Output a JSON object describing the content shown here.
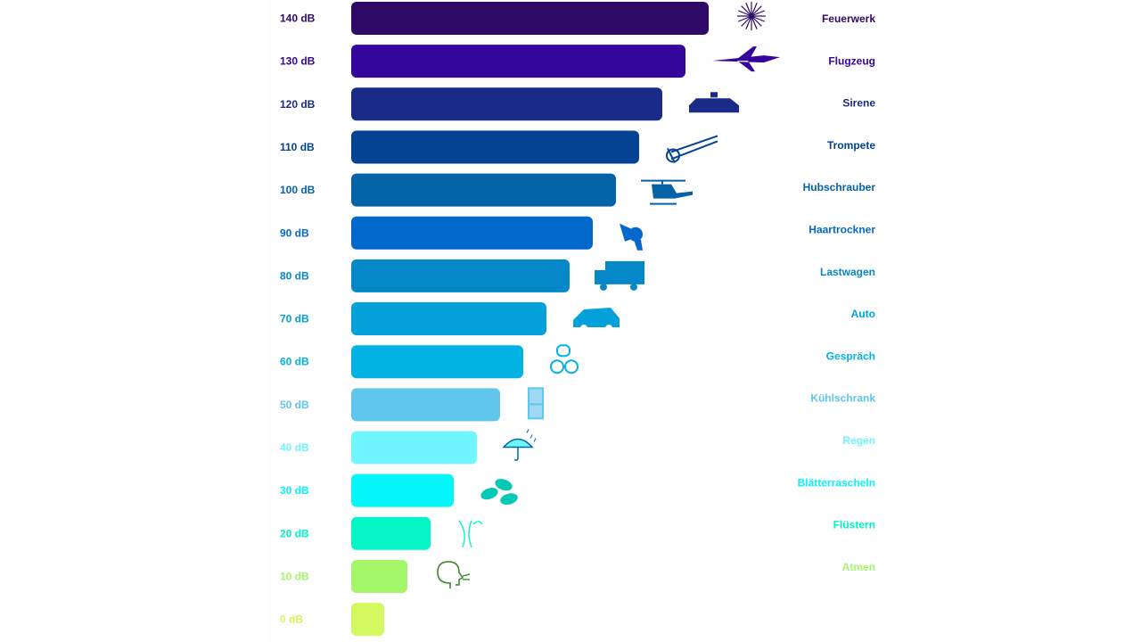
{
  "chart_data": {
    "type": "bar",
    "orientation": "horizontal",
    "unit": "dB",
    "categories": [
      "140 dB",
      "130 dB",
      "120 dB",
      "110 dB",
      "100 dB",
      "90 dB",
      "80 dB",
      "70 dB",
      "60 dB",
      "50 dB",
      "40 dB",
      "30 dB",
      "20 dB",
      "10 dB",
      "0 dB"
    ],
    "values": [
      140,
      130,
      120,
      110,
      100,
      90,
      80,
      70,
      60,
      50,
      40,
      30,
      20,
      10,
      0
    ],
    "sources": [
      "Feuerwerk",
      "Flugzeug",
      "Sirene",
      "Trompete",
      "Hubschrauber",
      "Haartrockner",
      "Lastwagen",
      "Auto",
      "Gespräch",
      "Kühlschrank",
      "Regen",
      "Blätterrascheln",
      "Flüstern",
      "Atmen",
      ""
    ],
    "icons": [
      "fireworks-icon",
      "airplane-icon",
      "siren-car-icon",
      "trumpet-icon",
      "helicopter-icon",
      "hair-dryer-icon",
      "truck-icon",
      "car-icon",
      "conversation-icon",
      "fridge-icon",
      "umbrella-rain-icon",
      "leaves-icon",
      "whisper-icon",
      "breathing-icon",
      ""
    ],
    "colors": [
      "#2e0a66",
      "#35069b",
      "#1a2a87",
      "#034392",
      "#0463a6",
      "#0368cb",
      "#0588c8",
      "#03a0d9",
      "#03b3e3",
      "#60c6ec",
      "#6ff6ff",
      "#06f5f8",
      "#05f5c7",
      "#a4f76b",
      "#d4f860"
    ],
    "grid": false,
    "legend": "none"
  }
}
